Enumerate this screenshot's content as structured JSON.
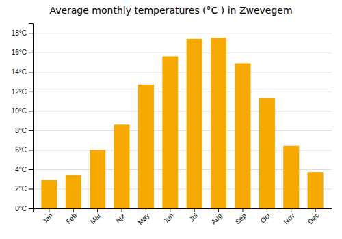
{
  "chart_data": {
    "type": "bar",
    "title": "Average monthly temperatures (°C ) in Zwevegem",
    "categories": [
      "Jan",
      "Feb",
      "Mar",
      "Apr",
      "May",
      "Jun",
      "Jul",
      "Aug",
      "Sep",
      "Oct",
      "Nov",
      "Dec"
    ],
    "values": [
      2.9,
      3.4,
      6.0,
      8.6,
      12.7,
      15.6,
      17.4,
      17.5,
      14.9,
      11.3,
      6.4,
      3.7
    ],
    "color": "#F5A800",
    "ylim": [
      0,
      19.0
    ],
    "yticks": [
      {
        "value": 0,
        "label": "0°C"
      },
      {
        "value": 2,
        "label": "2°C"
      },
      {
        "value": 4,
        "label": "4°C"
      },
      {
        "value": 6,
        "label": "6°C"
      },
      {
        "value": 8,
        "label": "8°C"
      },
      {
        "value": 10,
        "label": "10°C"
      },
      {
        "value": 12,
        "label": "12°C"
      },
      {
        "value": 14,
        "label": "14°C"
      },
      {
        "value": 16,
        "label": "16°C"
      },
      {
        "value": 18,
        "label": "18°C"
      }
    ],
    "grid": true
  }
}
